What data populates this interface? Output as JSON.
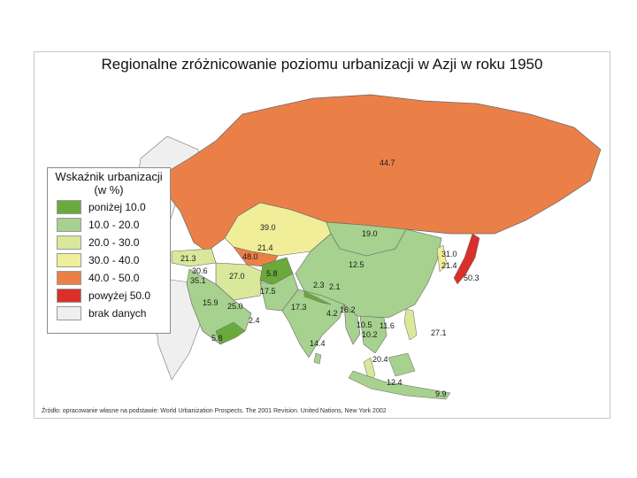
{
  "title": "Regionalne zróżnicowanie poziomu urbanizacji w Azji w roku 1950",
  "legend": {
    "title_line1": "Wskaźnik urbanizacji",
    "title_line2": "(w %)",
    "items": [
      {
        "label": "poniżej 10.0",
        "color": "#6aaa3d"
      },
      {
        "label": "10.0 - 20.0",
        "color": "#a6d18e"
      },
      {
        "label": "20.0 - 30.0",
        "color": "#d9e89a"
      },
      {
        "label": "30.0 - 40.0",
        "color": "#f1ee9a"
      },
      {
        "label": "40.0 - 50.0",
        "color": "#ea8048"
      },
      {
        "label": "powyżej 50.0",
        "color": "#d9302b"
      },
      {
        "label": "brak danych",
        "color": "#efefef"
      }
    ]
  },
  "values": {
    "russia": "44.7",
    "kazakhstan": "39.0",
    "mongolia": "19.0",
    "china": "12.5",
    "korea_n": "31.0",
    "korea_s": "21.4",
    "japan": "50.3",
    "turkey": "21.3",
    "iran": "27.0",
    "central_asia": "48.0",
    "uzbekistan": "21.4",
    "afghanistan": "5.8",
    "pakistan": "17.5",
    "saudi": "15.9",
    "oman_a": "25.0",
    "yemen": "5.8",
    "oman": "2.4",
    "india": "17.3",
    "nepal": "2.3",
    "bhutan": "2.1",
    "bangladesh": "4.2",
    "myanmar": "16.2",
    "srilanka": "14.4",
    "taiwan": "11.6",
    "laos": "10.5",
    "cambodia": "10.2",
    "philippines": "27.1",
    "malaysia": "20.4",
    "indonesia": "12.4",
    "timor": "9.9",
    "syria": "35.1",
    "lebanon": "30.6"
  },
  "source": "Źródło: opracowanie własne na podstawie: World Urbanization Prospects. The 2001 Revision. United Nations, New York 2002"
}
